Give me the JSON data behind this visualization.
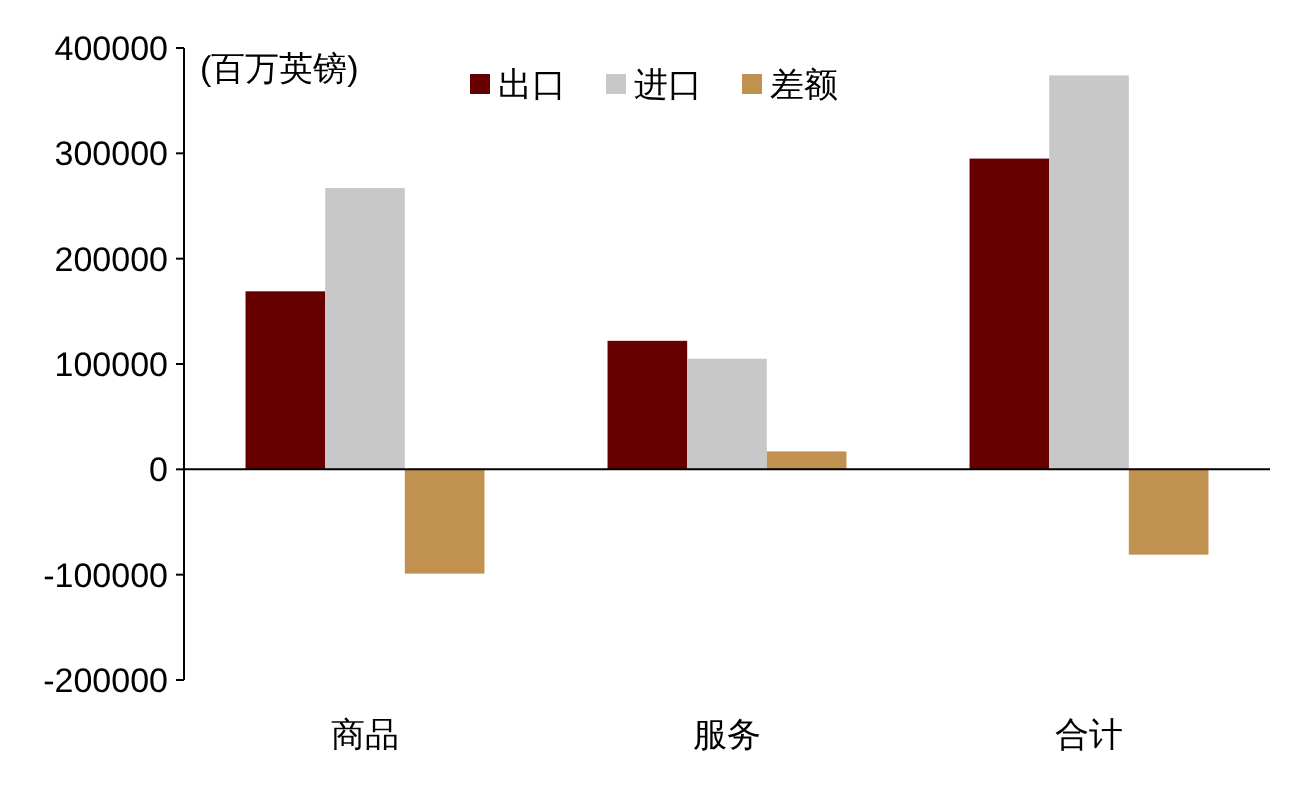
{
  "chart_data": {
    "type": "bar",
    "ylabel": "(百万英镑)",
    "categories": [
      "商品",
      "服务",
      "合计"
    ],
    "series": [
      {
        "name": "出口",
        "color": "#660000",
        "values": [
          169000,
          122000,
          295000
        ]
      },
      {
        "name": "进口",
        "color": "#c8c8c8",
        "values": [
          267000,
          105000,
          374000
        ]
      },
      {
        "name": "差额",
        "color": "#c0914f",
        "values": [
          -99000,
          17000,
          -81000
        ]
      }
    ],
    "ylim": [
      -200000,
      400000
    ],
    "yticks": [
      -200000,
      -100000,
      0,
      100000,
      200000,
      300000,
      400000
    ],
    "legend": "top"
  }
}
